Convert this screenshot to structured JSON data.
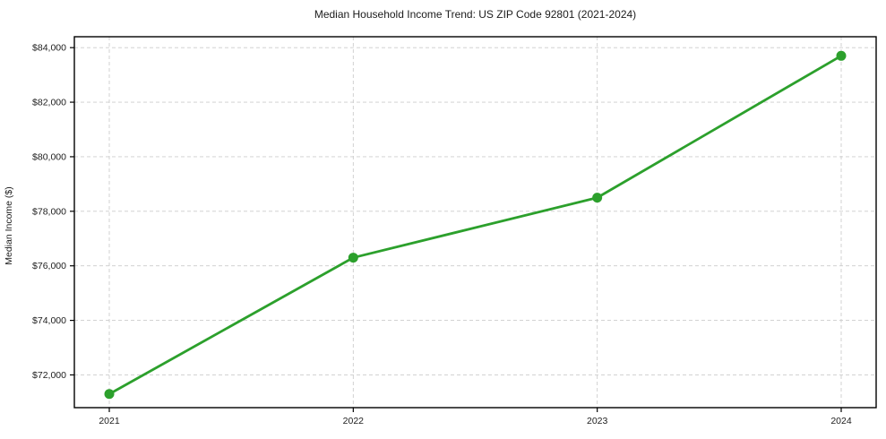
{
  "page": {
    "background": "#ffffff"
  },
  "chart_data": {
    "type": "line",
    "title": "Median Household Income Trend: US ZIP Code 92801 (2021-2024)",
    "xlabel": "",
    "ylabel": "Median Income ($)",
    "categories": [
      "2021",
      "2022",
      "2023",
      "2024"
    ],
    "series": [
      {
        "name": "Median Household Income",
        "values": [
          71300,
          76300,
          78500,
          83700
        ],
        "color": "#2ca02c",
        "marker": "circle",
        "line_width": 2.8,
        "marker_radius": 5.5
      }
    ],
    "ylim": [
      70800,
      84400
    ],
    "yticks": [
      72000,
      74000,
      76000,
      78000,
      80000,
      82000,
      84000
    ],
    "ytick_labels": [
      "$72,000",
      "$74,000",
      "$76,000",
      "$78,000",
      "$80,000",
      "$82,000",
      "$84,000"
    ],
    "xtick_labels": [
      "2021",
      "2022",
      "2023",
      "2024"
    ],
    "grid": true,
    "grid_color": "#cccccc",
    "grid_style": "dashed",
    "axis_color": "#000000",
    "text_color": "#1c1c1c",
    "legend": "none"
  }
}
